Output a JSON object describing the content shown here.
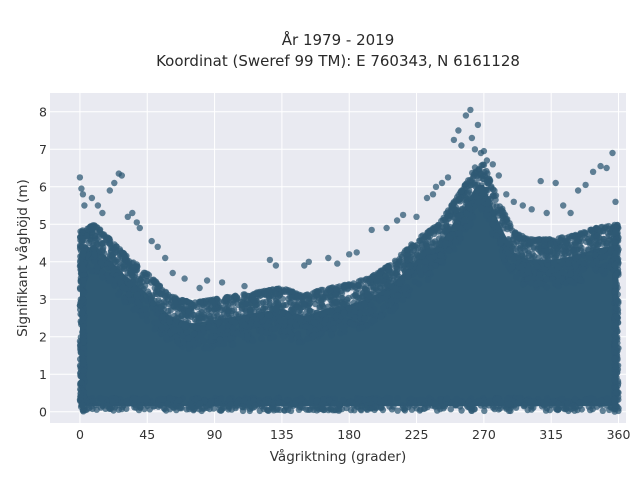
{
  "chart_data": {
    "type": "scatter",
    "title": "År 1979 - 2019",
    "subtitle": "Koordinat (Sweref 99 TM): E 760343, N 6161128",
    "xlabel": "Vågriktning (grader)",
    "ylabel": "Signifikant våghöjd (m)",
    "xlim": [
      -20,
      365
    ],
    "ylim": [
      -0.3,
      8.5
    ],
    "xticks": [
      0,
      45,
      90,
      135,
      180,
      225,
      270,
      315,
      360
    ],
    "yticks": [
      0,
      1,
      2,
      3,
      4,
      5,
      6,
      7,
      8
    ],
    "grid": true,
    "marker_color": "#2f5a74",
    "plot_background": "#e9eaf1",
    "envelope": {
      "direction": [
        0,
        10,
        20,
        30,
        45,
        60,
        75,
        90,
        105,
        120,
        135,
        150,
        165,
        180,
        195,
        210,
        225,
        240,
        250,
        260,
        265,
        270,
        280,
        290,
        300,
        315,
        330,
        345,
        360
      ],
      "max_height": [
        4.8,
        5.0,
        4.6,
        4.2,
        3.7,
        3.1,
        2.9,
        3.0,
        3.1,
        3.2,
        3.3,
        3.1,
        3.3,
        3.4,
        3.6,
        4.0,
        4.6,
        5.0,
        5.6,
        6.2,
        6.6,
        6.6,
        5.6,
        4.8,
        4.6,
        4.6,
        4.7,
        4.9,
        5.0
      ]
    },
    "outliers": [
      {
        "x": 0,
        "y": 6.25
      },
      {
        "x": 1,
        "y": 5.95
      },
      {
        "x": 2,
        "y": 5.8
      },
      {
        "x": 3,
        "y": 5.5
      },
      {
        "x": 8,
        "y": 5.7
      },
      {
        "x": 12,
        "y": 5.5
      },
      {
        "x": 15,
        "y": 5.3
      },
      {
        "x": 20,
        "y": 5.9
      },
      {
        "x": 23,
        "y": 6.1
      },
      {
        "x": 26,
        "y": 6.35
      },
      {
        "x": 28,
        "y": 6.3
      },
      {
        "x": 32,
        "y": 5.2
      },
      {
        "x": 35,
        "y": 5.3
      },
      {
        "x": 38,
        "y": 5.05
      },
      {
        "x": 40,
        "y": 4.9
      },
      {
        "x": 48,
        "y": 4.55
      },
      {
        "x": 52,
        "y": 4.4
      },
      {
        "x": 57,
        "y": 4.1
      },
      {
        "x": 62,
        "y": 3.7
      },
      {
        "x": 70,
        "y": 3.55
      },
      {
        "x": 80,
        "y": 3.3
      },
      {
        "x": 85,
        "y": 3.5
      },
      {
        "x": 95,
        "y": 3.45
      },
      {
        "x": 110,
        "y": 3.35
      },
      {
        "x": 127,
        "y": 4.05
      },
      {
        "x": 131,
        "y": 3.9
      },
      {
        "x": 150,
        "y": 3.9
      },
      {
        "x": 153,
        "y": 4.0
      },
      {
        "x": 166,
        "y": 4.1
      },
      {
        "x": 172,
        "y": 3.95
      },
      {
        "x": 180,
        "y": 4.2
      },
      {
        "x": 185,
        "y": 4.25
      },
      {
        "x": 195,
        "y": 4.85
      },
      {
        "x": 205,
        "y": 4.9
      },
      {
        "x": 212,
        "y": 5.1
      },
      {
        "x": 216,
        "y": 5.25
      },
      {
        "x": 225,
        "y": 5.2
      },
      {
        "x": 232,
        "y": 5.7
      },
      {
        "x": 236,
        "y": 5.8
      },
      {
        "x": 238,
        "y": 6.0
      },
      {
        "x": 242,
        "y": 6.1
      },
      {
        "x": 246,
        "y": 6.25
      },
      {
        "x": 250,
        "y": 7.25
      },
      {
        "x": 253,
        "y": 7.5
      },
      {
        "x": 255,
        "y": 7.1
      },
      {
        "x": 258,
        "y": 7.9
      },
      {
        "x": 261,
        "y": 8.05
      },
      {
        "x": 262,
        "y": 7.3
      },
      {
        "x": 264,
        "y": 7.0
      },
      {
        "x": 266,
        "y": 7.65
      },
      {
        "x": 268,
        "y": 6.9
      },
      {
        "x": 270,
        "y": 6.95
      },
      {
        "x": 272,
        "y": 6.7
      },
      {
        "x": 276,
        "y": 6.6
      },
      {
        "x": 280,
        "y": 6.3
      },
      {
        "x": 285,
        "y": 5.8
      },
      {
        "x": 290,
        "y": 5.6
      },
      {
        "x": 296,
        "y": 5.5
      },
      {
        "x": 302,
        "y": 5.4
      },
      {
        "x": 308,
        "y": 6.15
      },
      {
        "x": 312,
        "y": 5.3
      },
      {
        "x": 318,
        "y": 6.1
      },
      {
        "x": 323,
        "y": 5.5
      },
      {
        "x": 328,
        "y": 5.3
      },
      {
        "x": 333,
        "y": 5.9
      },
      {
        "x": 338,
        "y": 6.05
      },
      {
        "x": 343,
        "y": 6.4
      },
      {
        "x": 348,
        "y": 6.55
      },
      {
        "x": 352,
        "y": 6.5
      },
      {
        "x": 356,
        "y": 6.9
      },
      {
        "x": 358,
        "y": 5.6
      }
    ]
  }
}
